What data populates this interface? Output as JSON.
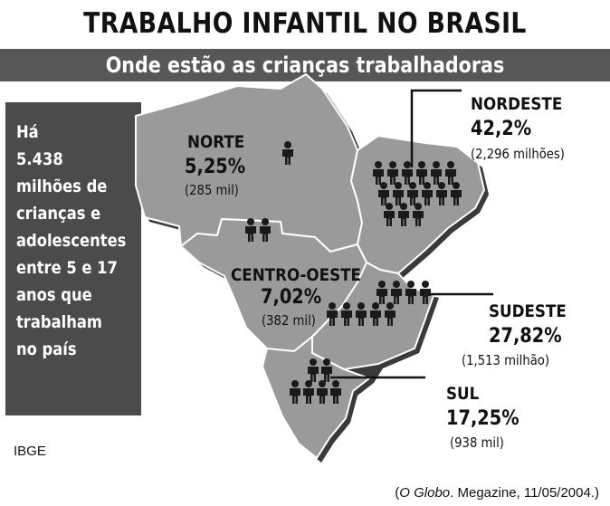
{
  "title": "TRABALHO INFANTIL NO BRASIL",
  "subtitle": "Onde estão as crianças trabalhadoras",
  "sidebar_text": "Há\n5.438\nmilhões de\ncrianças e\nadolescentes\nentre 5 e 17\nanos que\ntrabalham\nno país",
  "source": "IBGE",
  "citation": {
    "publication": "O Globo",
    "rest": ". Megazine, 11/05/2004.)",
    "open": "("
  },
  "colors": {
    "map_fill": "#9a9a9a",
    "map_shadow": "#3a3a3a",
    "border": "#ffffff",
    "bar": "#575757",
    "icon": "#1a1a1a"
  },
  "chart_data": {
    "type": "map",
    "title": "TRABALHO INFANTIL NO BRASIL",
    "subtitle": "Onde estão as crianças trabalhadoras",
    "regions": [
      {
        "name": "NORTE",
        "percent_label": "5,25%",
        "percent": 5.25,
        "count_label": "(285 mil)",
        "count_thousands": 285,
        "icons": 1
      },
      {
        "name": "NORDESTE",
        "percent_label": "42,2%",
        "percent": 42.2,
        "count_label": "(2,296 milhões)",
        "count_thousands": 2296,
        "icons": 17
      },
      {
        "name": "CENTRO-OESTE",
        "percent_label": "7,02%",
        "percent": 7.02,
        "count_label": "(382 mil)",
        "count_thousands": 382,
        "icons": 2
      },
      {
        "name": "SUDESTE",
        "percent_label": "27,82%",
        "percent": 27.82,
        "count_label": "(1,513 milhão)",
        "count_thousands": 1513,
        "icons": 9
      },
      {
        "name": "SUL",
        "percent_label": "17,25%",
        "percent": 17.25,
        "count_label": "(938 mil)",
        "count_thousands": 938,
        "icons": 6
      }
    ]
  }
}
